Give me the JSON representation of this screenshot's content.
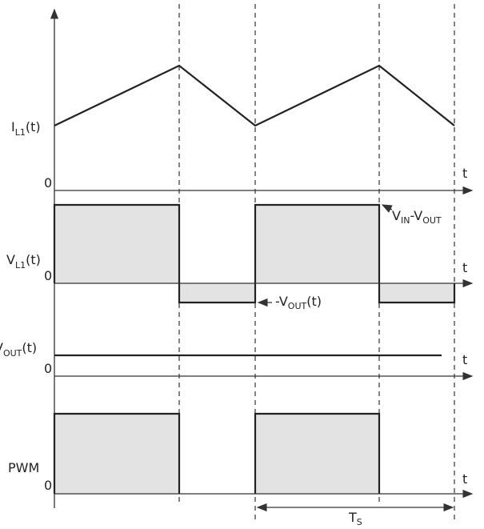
{
  "waveforms": [
    {
      "label": {
        "main": "I",
        "sub": "L1",
        "suffix": "(t)"
      },
      "zero": "0",
      "axis": "t"
    },
    {
      "label": {
        "main": "V",
        "sub": "L1",
        "suffix": "(t)"
      },
      "zero": "0",
      "axis": "t"
    },
    {
      "label": {
        "main": "V",
        "sub": "OUT",
        "suffix": "(t)"
      },
      "zero": "0",
      "axis": "t"
    },
    {
      "label": {
        "main": "PWM"
      },
      "zero": "0",
      "axis": "t"
    }
  ],
  "annotations": [
    {
      "parts": [
        "V",
        "IN",
        "-V",
        "OUT"
      ]
    },
    {
      "parts": [
        "-V",
        "OUT",
        "(t)"
      ]
    }
  ],
  "period": {
    "main": "T",
    "sub": "S"
  }
}
